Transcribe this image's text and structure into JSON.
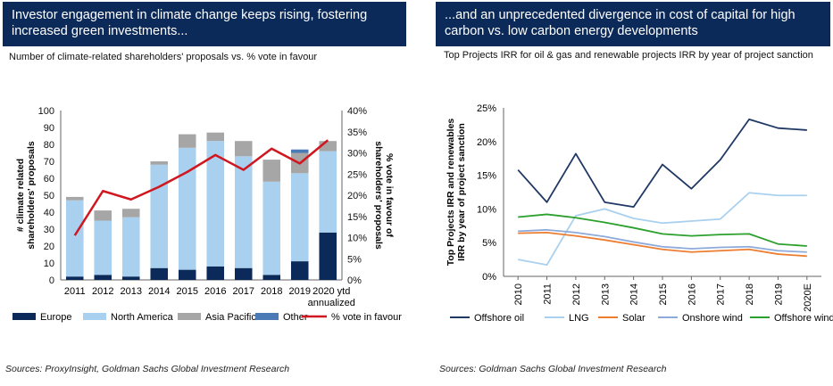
{
  "left_panel": {
    "header": "Investor engagement in climate change keeps rising, fostering increased green investments...",
    "subtitle": "Number of climate-related shareholders' proposals vs. % vote in favour",
    "source": "Sources: ProxyInsight, Goldman Sachs Global Investment Research"
  },
  "right_panel": {
    "header": "...and an unprecedented divergence in cost of capital for high carbon vs. low carbon energy developments",
    "subtitle": "Top Projects IRR for oil & gas and renewable projects IRR by year of project sanction",
    "source": "Sources: Goldman Sachs Global Investment Research"
  },
  "chart_data": [
    {
      "type": "bar",
      "stacked": true,
      "title": "Number of climate-related shareholders' proposals vs. % vote in favour",
      "categories": [
        "2011",
        "2012",
        "2013",
        "2014",
        "2015",
        "2016",
        "2017",
        "2018",
        "2019",
        "2020 ytd annualized"
      ],
      "ylabel": "# climate related shareholders' proposals",
      "y2label": "% vote in favour of shareholders' proposals",
      "ylim": [
        0,
        100
      ],
      "yticks": [
        "0",
        "10",
        "20",
        "30",
        "40",
        "50",
        "60",
        "70",
        "80",
        "90",
        "100"
      ],
      "y2lim": [
        0,
        40
      ],
      "y2ticks": [
        "0%",
        "5%",
        "10%",
        "15%",
        "20%",
        "25%",
        "30%",
        "35%",
        "40%"
      ],
      "series": [
        {
          "name": "Europe",
          "color": "#0b2a59",
          "values": [
            2,
            3,
            2,
            7,
            6,
            8,
            7,
            3,
            11,
            28
          ]
        },
        {
          "name": "North America",
          "color": "#a9d0ee",
          "values": [
            45,
            32,
            35,
            61,
            72,
            74,
            66,
            55,
            52,
            48
          ]
        },
        {
          "name": "Asia Pacific",
          "color": "#a6a6a6",
          "values": [
            2,
            6,
            5,
            2,
            8,
            5,
            9,
            13,
            12,
            6
          ]
        },
        {
          "name": "Other",
          "color": "#4a7bb7",
          "values": [
            0,
            0,
            0,
            0,
            0,
            0,
            0,
            0,
            2,
            0
          ]
        }
      ],
      "line_series": {
        "name": "% vote in favour",
        "color": "#d0161e",
        "axis": "right",
        "values": [
          10.5,
          21,
          19,
          22,
          25.5,
          29.5,
          26,
          31,
          27.5,
          33
        ]
      },
      "legend_position": "bottom"
    },
    {
      "type": "line",
      "title": "Top Projects IRR for oil & gas and renewable projects IRR by year of project sanction",
      "x": [
        "2010",
        "2011",
        "2012",
        "2013",
        "2014",
        "2015",
        "2016",
        "2017",
        "2018",
        "2019",
        "2020E"
      ],
      "ylabel": "Top Projects IRR and renewables IRR by year of project sanction",
      "ylim": [
        0,
        25
      ],
      "yticks": [
        "0%",
        "5%",
        "10%",
        "15%",
        "20%",
        "25%"
      ],
      "series": [
        {
          "name": "Offshore oil",
          "color": "#1f3864",
          "values": [
            15.8,
            11,
            18.2,
            11,
            10.3,
            16.6,
            13,
            17.3,
            23.3,
            22,
            21.7
          ]
        },
        {
          "name": "LNG",
          "color": "#a9d0ee",
          "values": [
            2.5,
            1.7,
            9,
            10,
            8.6,
            7.9,
            8.2,
            8.5,
            12.4,
            12,
            12
          ]
        },
        {
          "name": "Solar",
          "color": "#ed7d31",
          "values": [
            6.4,
            6.5,
            6,
            5.4,
            4.7,
            4,
            3.6,
            3.8,
            4,
            3.3,
            3
          ]
        },
        {
          "name": "Onshore wind",
          "color": "#8eaadb",
          "values": [
            6.7,
            6.9,
            6.5,
            5.9,
            5.1,
            4.4,
            4.1,
            4.3,
            4.4,
            3.8,
            3.6
          ]
        },
        {
          "name": "Offshore wind",
          "color": "#2ca02c",
          "values": [
            8.8,
            9.2,
            8.7,
            8,
            7.2,
            6.3,
            6,
            6.2,
            6.3,
            4.8,
            4.5
          ]
        }
      ],
      "legend_position": "bottom"
    }
  ]
}
